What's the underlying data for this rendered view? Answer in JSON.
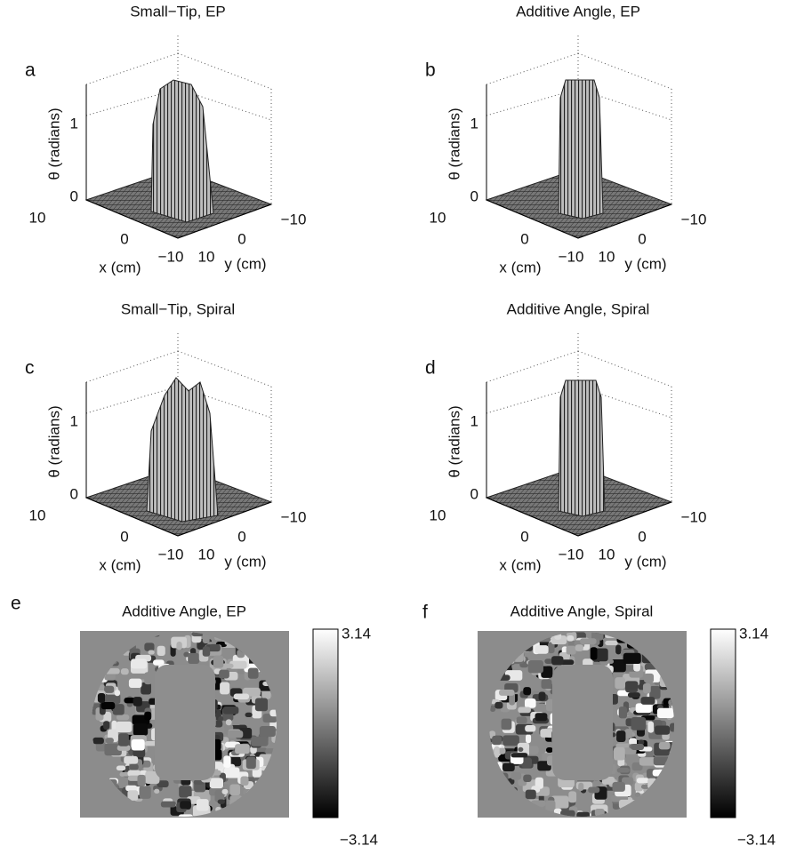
{
  "surface_panels": [
    {
      "letter": "a",
      "title": "Small−Tip, EP",
      "zlabel": "θ (radians)",
      "zticks": [
        "0",
        "1"
      ],
      "xlabel": "x (cm)",
      "xticks": [
        "10",
        "0",
        "−10"
      ],
      "ylabel": "y (cm)",
      "yticks": [
        "10",
        "0",
        "−10"
      ]
    },
    {
      "letter": "b",
      "title": "Additive Angle, EP",
      "zlabel": "θ (radians)",
      "zticks": [
        "0",
        "1"
      ],
      "xlabel": "x (cm)",
      "xticks": [
        "10",
        "0",
        "−10"
      ],
      "ylabel": "y (cm)",
      "yticks": [
        "10",
        "0",
        "−10"
      ]
    },
    {
      "letter": "c",
      "title": "Small−Tip, Spiral",
      "zlabel": "θ (radians)",
      "zticks": [
        "0",
        "1"
      ],
      "xlabel": "x (cm)",
      "xticks": [
        "10",
        "0",
        "−10"
      ],
      "ylabel": "y (cm)",
      "yticks": [
        "10",
        "0",
        "−10"
      ]
    },
    {
      "letter": "d",
      "title": "Additive Angle, Spiral",
      "zlabel": "θ (radians)",
      "zticks": [
        "0",
        "1"
      ],
      "xlabel": "x (cm)",
      "xticks": [
        "10",
        "0",
        "−10"
      ],
      "ylabel": "y (cm)",
      "yticks": [
        "10",
        "0",
        "−10"
      ]
    }
  ],
  "map_panels": [
    {
      "letter": "e",
      "title": "Additive Angle, EP",
      "colorbar_max": "3.14",
      "colorbar_min": "−3.14"
    },
    {
      "letter": "f",
      "title": "Additive Angle, Spiral",
      "colorbar_max": "3.14",
      "colorbar_min": "−3.14"
    }
  ]
}
